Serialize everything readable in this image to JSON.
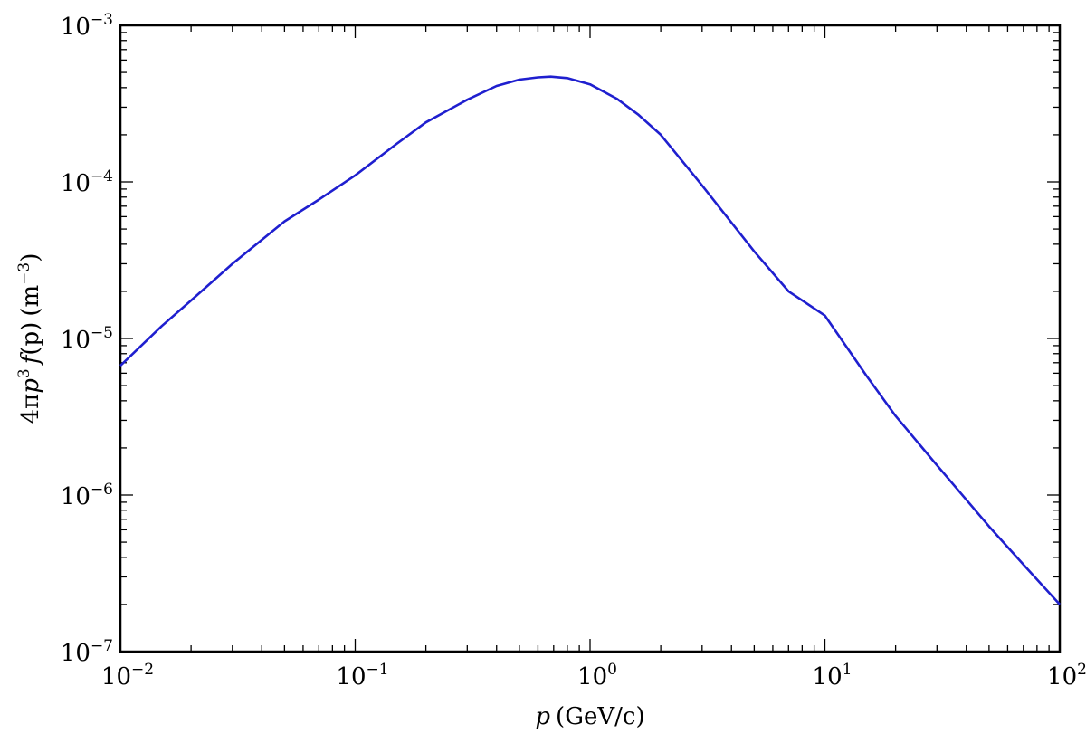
{
  "chart_data": {
    "type": "line",
    "title": "",
    "xlabel": {
      "symbol": "p",
      "unit": "(GeV/c)"
    },
    "ylabel": {
      "prefix": "4π",
      "symbol": "p",
      "power": "3",
      "func": "f",
      "arg": "(p)",
      "unit_open": "(m",
      "unit_power": "−3",
      "unit_close": ")"
    },
    "x_scale": "log",
    "y_scale": "log",
    "xlim": [
      0.01,
      100
    ],
    "ylim": [
      1e-07,
      0.001
    ],
    "x_ticks": [
      {
        "base": "10",
        "exp": "−2",
        "value": 0.01
      },
      {
        "base": "10",
        "exp": "−1",
        "value": 0.1
      },
      {
        "base": "10",
        "exp": "0",
        "value": 1
      },
      {
        "base": "10",
        "exp": "1",
        "value": 10
      },
      {
        "base": "10",
        "exp": "2",
        "value": 100
      }
    ],
    "y_ticks": [
      {
        "base": "10",
        "exp": "−7",
        "value": 1e-07
      },
      {
        "base": "10",
        "exp": "−6",
        "value": 1e-06
      },
      {
        "base": "10",
        "exp": "−5",
        "value": 1e-05
      },
      {
        "base": "10",
        "exp": "−4",
        "value": 0.0001
      },
      {
        "base": "10",
        "exp": "−3",
        "value": 0.001
      }
    ],
    "grid": false,
    "series": [
      {
        "color": "#1f1fcf",
        "x": [
          0.01,
          0.015,
          0.02,
          0.03,
          0.05,
          0.07,
          0.1,
          0.15,
          0.2,
          0.3,
          0.4,
          0.5,
          0.6,
          0.68,
          0.8,
          1.0,
          1.3,
          1.6,
          2.0,
          3.0,
          5.0,
          7.0,
          10,
          15,
          20,
          30,
          50,
          70,
          100
        ],
        "y": [
          6.7e-06,
          1.2e-05,
          1.75e-05,
          3e-05,
          5.6e-05,
          7.7e-05,
          0.00011,
          0.000175,
          0.00024,
          0.000335,
          0.00041,
          0.00045,
          0.000465,
          0.00047,
          0.00046,
          0.00042,
          0.00034,
          0.00027,
          0.0002,
          9.5e-05,
          3.6e-05,
          2e-05,
          1.4e-05,
          5.8e-06,
          3.2e-06,
          1.55e-06,
          6.3e-07,
          3.6e-07,
          2e-07
        ]
      }
    ]
  }
}
